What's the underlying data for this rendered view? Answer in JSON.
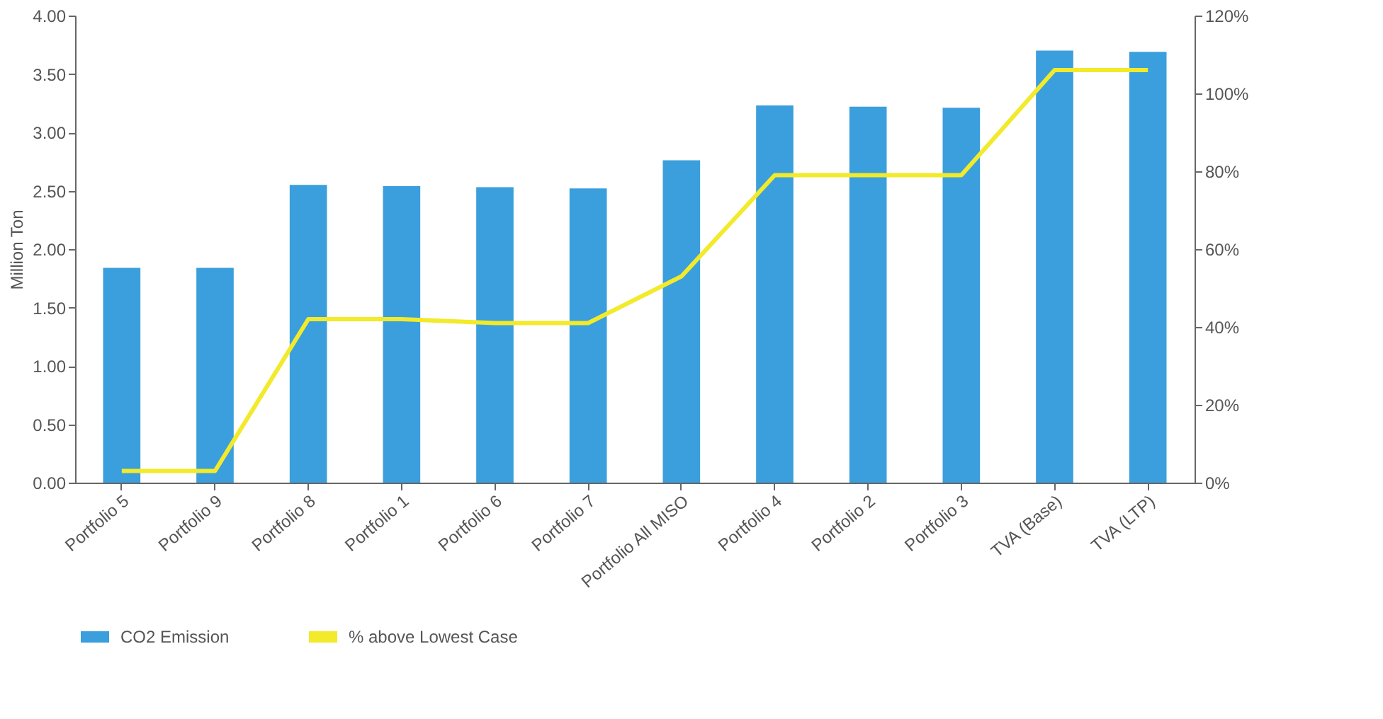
{
  "chart_data": {
    "type": "bar",
    "ylabel": "Million Ton",
    "categories": [
      "Portfolio 5",
      "Portfolio 9",
      "Portfolio 8",
      "Portfolio 1",
      "Portfolio 6",
      "Portfolio 7",
      "Portfolio All MISO",
      "Portfolio 4",
      "Portfolio 2",
      "Portfolio 3",
      "TVA (Base)",
      "TVA (LTP)"
    ],
    "series": [
      {
        "name": "CO2 Emission",
        "color": "#3a9fdc",
        "values": [
          1.84,
          1.84,
          2.55,
          2.54,
          2.53,
          2.52,
          2.76,
          3.23,
          3.22,
          3.21,
          3.7,
          3.69
        ]
      },
      {
        "name": "% above Lowest Case",
        "type": "line",
        "axis": "y2",
        "color": "#f2ea2a",
        "values": [
          3,
          3,
          42,
          42,
          41,
          41,
          53,
          79,
          79,
          79,
          106,
          106
        ]
      }
    ],
    "ylim": [
      0,
      4
    ],
    "yticks": [
      {
        "value": 0,
        "label": "0.00"
      },
      {
        "value": 0.5,
        "label": "0.50"
      },
      {
        "value": 1,
        "label": "1.00"
      },
      {
        "value": 1.5,
        "label": "1.50"
      },
      {
        "value": 2,
        "label": "2.00"
      },
      {
        "value": 2.5,
        "label": "2.50"
      },
      {
        "value": 3,
        "label": "3.00"
      },
      {
        "value": 3.5,
        "label": "3.50"
      },
      {
        "value": 4,
        "label": "4.00"
      }
    ],
    "y2lim": [
      0,
      120
    ],
    "y2ticks": [
      {
        "value": 0,
        "label": "0%"
      },
      {
        "value": 20,
        "label": "20%"
      },
      {
        "value": 40,
        "label": "40%"
      },
      {
        "value": 60,
        "label": "60%"
      },
      {
        "value": 80,
        "label": "80%"
      },
      {
        "value": 100,
        "label": "100%"
      },
      {
        "value": 120,
        "label": "120%"
      }
    ],
    "grid": false,
    "legend": "bottom",
    "marker": "none",
    "line_style": "solid"
  }
}
